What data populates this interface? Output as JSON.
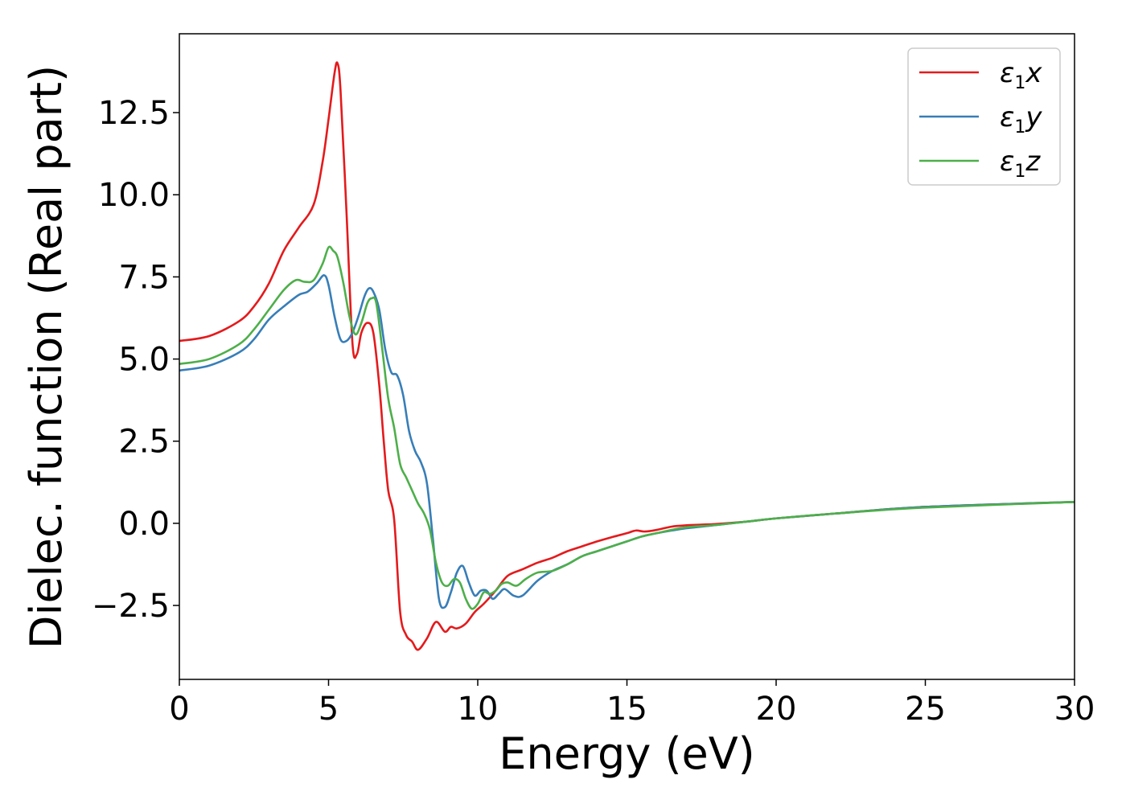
{
  "chart_data": {
    "type": "line",
    "title": "",
    "xlabel": "Energy (eV)",
    "ylabel": "Dielec. function (Real part)",
    "xlim": [
      0,
      30
    ],
    "ylim": [
      -4.75,
      14.9
    ],
    "xticks": [
      0,
      5,
      10,
      15,
      20,
      25,
      30
    ],
    "xtick_labels": [
      "0",
      "5",
      "10",
      "15",
      "20",
      "25",
      "30"
    ],
    "yticks": [
      -2.5,
      0.0,
      2.5,
      5.0,
      7.5,
      10.0,
      12.5
    ],
    "ytick_labels": [
      "−2.5",
      "0.0",
      "2.5",
      "5.0",
      "7.5",
      "10.0",
      "12.5"
    ],
    "grid": false,
    "legend_position": "top-right",
    "series": [
      {
        "name": "ε₁x",
        "legend_symbol": "ε",
        "legend_sub": "1",
        "legend_var": "x",
        "color": "#e41a1c",
        "x": [
          0,
          1,
          2,
          2.5,
          3,
          3.5,
          4,
          4.5,
          4.8,
          5.0,
          5.2,
          5.3,
          5.4,
          5.6,
          5.8,
          5.95,
          6.1,
          6.3,
          6.5,
          6.7,
          6.85,
          7.0,
          7.2,
          7.4,
          7.6,
          7.8,
          8.0,
          8.3,
          8.6,
          8.9,
          9.1,
          9.3,
          9.6,
          9.9,
          10.2,
          10.6,
          11.0,
          11.5,
          12.0,
          12.5,
          13.0,
          13.5,
          14.0,
          14.5,
          15.0,
          15.3,
          15.6,
          16.0,
          16.5,
          17.0,
          17.5,
          18.0,
          19.0,
          20.0,
          22.0,
          25.0,
          30.0
        ],
        "y": [
          5.55,
          5.7,
          6.15,
          6.6,
          7.3,
          8.3,
          9.0,
          9.7,
          11.0,
          12.3,
          13.7,
          14.0,
          13.2,
          9.5,
          5.5,
          5.15,
          5.8,
          6.1,
          5.8,
          4.2,
          2.5,
          1.0,
          0.1,
          -2.7,
          -3.4,
          -3.6,
          -3.85,
          -3.5,
          -3.0,
          -3.3,
          -3.15,
          -3.2,
          -3.05,
          -2.7,
          -2.45,
          -2.05,
          -1.6,
          -1.4,
          -1.2,
          -1.05,
          -0.85,
          -0.7,
          -0.55,
          -0.42,
          -0.3,
          -0.22,
          -0.25,
          -0.2,
          -0.1,
          -0.06,
          -0.04,
          -0.02,
          0.05,
          0.15,
          0.3,
          0.5,
          0.65
        ]
      },
      {
        "name": "ε₁y",
        "legend_symbol": "ε",
        "legend_sub": "1",
        "legend_var": "y",
        "color": "#377eb8",
        "x": [
          0,
          1,
          2,
          2.5,
          3,
          3.5,
          4,
          4.3,
          4.6,
          4.85,
          5.0,
          5.2,
          5.4,
          5.6,
          5.8,
          6.0,
          6.2,
          6.35,
          6.5,
          6.7,
          6.9,
          7.1,
          7.3,
          7.5,
          7.7,
          7.9,
          8.1,
          8.3,
          8.5,
          8.7,
          8.9,
          9.1,
          9.3,
          9.5,
          9.7,
          9.9,
          10.1,
          10.3,
          10.5,
          10.7,
          10.9,
          11.2,
          11.5,
          12.0,
          12.5,
          13.0,
          13.5,
          14.0,
          14.5,
          15.0,
          15.5,
          16.0,
          16.5,
          17.0,
          18.0,
          19.0,
          20.0,
          22.0,
          25.0,
          30.0
        ],
        "y": [
          4.65,
          4.8,
          5.2,
          5.6,
          6.2,
          6.6,
          6.95,
          7.05,
          7.3,
          7.55,
          7.25,
          6.3,
          5.6,
          5.55,
          5.8,
          6.3,
          6.9,
          7.15,
          7.05,
          6.5,
          5.3,
          4.6,
          4.5,
          3.9,
          2.8,
          2.2,
          1.85,
          1.2,
          -0.5,
          -2.3,
          -2.55,
          -2.1,
          -1.5,
          -1.3,
          -1.8,
          -2.2,
          -2.05,
          -2.05,
          -2.3,
          -2.15,
          -2.0,
          -2.2,
          -2.2,
          -1.75,
          -1.45,
          -1.25,
          -1.0,
          -0.85,
          -0.7,
          -0.55,
          -0.4,
          -0.3,
          -0.22,
          -0.15,
          -0.05,
          0.05,
          0.15,
          0.3,
          0.5,
          0.65
        ]
      },
      {
        "name": "ε₁z",
        "legend_symbol": "ε",
        "legend_sub": "1",
        "legend_var": "z",
        "color": "#4daf4a",
        "x": [
          0,
          1,
          2,
          2.5,
          3,
          3.5,
          3.9,
          4.2,
          4.5,
          4.8,
          5.0,
          5.15,
          5.3,
          5.5,
          5.7,
          5.9,
          6.1,
          6.3,
          6.45,
          6.6,
          6.8,
          7.0,
          7.2,
          7.4,
          7.6,
          7.8,
          8.0,
          8.2,
          8.4,
          8.6,
          8.8,
          9.0,
          9.2,
          9.4,
          9.6,
          9.8,
          10.0,
          10.2,
          10.4,
          10.6,
          10.8,
          11.0,
          11.3,
          11.6,
          12.0,
          12.5,
          13.0,
          13.5,
          14.0,
          14.5,
          15.0,
          15.5,
          16.0,
          16.5,
          17.0,
          18.0,
          19.0,
          20.0,
          22.0,
          25.0,
          30.0
        ],
        "y": [
          4.85,
          5.0,
          5.45,
          5.9,
          6.5,
          7.1,
          7.4,
          7.35,
          7.4,
          7.9,
          8.4,
          8.3,
          8.1,
          7.3,
          6.3,
          5.75,
          6.1,
          6.7,
          6.85,
          6.7,
          5.3,
          3.8,
          2.9,
          1.8,
          1.4,
          1.0,
          0.6,
          0.3,
          -0.2,
          -1.2,
          -1.8,
          -1.9,
          -1.7,
          -1.8,
          -2.3,
          -2.6,
          -2.45,
          -2.1,
          -2.15,
          -2.05,
          -1.85,
          -1.8,
          -1.9,
          -1.7,
          -1.5,
          -1.45,
          -1.25,
          -1.0,
          -0.85,
          -0.7,
          -0.55,
          -0.4,
          -0.3,
          -0.2,
          -0.12,
          -0.05,
          0.05,
          0.15,
          0.3,
          0.48,
          0.65
        ]
      }
    ]
  }
}
